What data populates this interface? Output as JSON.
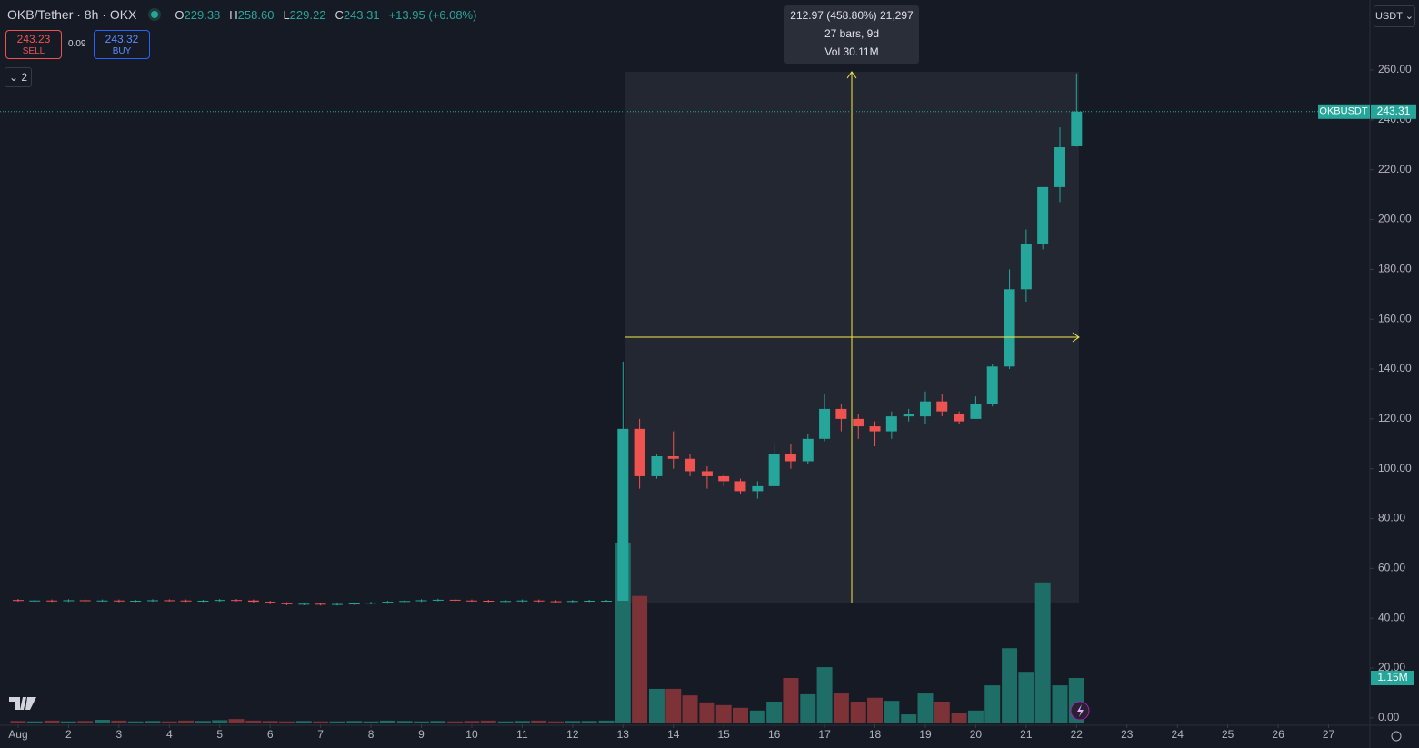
{
  "header": {
    "symbol": "OKB/Tether · 8h · OKX",
    "ohlc": [
      {
        "key": "O",
        "value": "229.38"
      },
      {
        "key": "H",
        "value": "258.60"
      },
      {
        "key": "L",
        "value": "229.22"
      },
      {
        "key": "C",
        "value": "243.31"
      }
    ],
    "change": "+13.95 (+6.08%)"
  },
  "trade": {
    "sell_price": "243.23",
    "sell": "SELL",
    "spread": "0.09",
    "buy_price": "243.32",
    "buy": "BUY"
  },
  "indicators_toggle": "2",
  "currency": "USDT",
  "measure": {
    "line1": "212.97 (458.80%) 21,297",
    "line2": "27 bars, 9d",
    "line3": "Vol 30.11M"
  },
  "chart_data": {
    "type": "candlestick",
    "up_color": "#26a69a",
    "down_color": "#ef5350",
    "volume_up_color": "#1e6d67",
    "volume_down_color": "#7d3237",
    "symbol_tag": "OKBUSDT",
    "x": [
      1,
      1.33,
      1.67,
      2,
      2.33,
      2.67,
      3,
      3.33,
      3.67,
      4,
      4.33,
      4.67,
      5,
      5.33,
      5.67,
      6,
      6.33,
      6.67,
      7,
      7.33,
      7.67,
      8,
      8.33,
      8.67,
      9,
      9.33,
      9.67,
      10,
      10.33,
      10.67,
      11,
      11.33,
      11.67,
      12,
      12.33,
      12.67,
      13,
      13.33,
      13.67,
      14,
      14.33,
      14.67,
      15,
      15.33,
      15.67,
      16,
      16.33,
      16.67,
      17,
      17.33,
      17.67,
      18,
      18.33,
      18.67,
      19,
      19.33,
      19.67,
      20,
      20.33,
      20.67,
      21,
      21.33,
      21.67,
      22
    ],
    "open": [
      47.3,
      47.0,
      47.1,
      46.9,
      47.2,
      47.0,
      47.1,
      46.8,
      47.0,
      47.2,
      47.1,
      46.9,
      47.0,
      47.3,
      47.1,
      46.6,
      46.0,
      45.6,
      45.8,
      45.5,
      45.7,
      45.9,
      46.2,
      46.6,
      46.9,
      47.2,
      47.4,
      47.1,
      47.0,
      46.8,
      46.9,
      47.1,
      46.8,
      46.7,
      46.9,
      47.0,
      47,
      116,
      97,
      105,
      104,
      99,
      97,
      95,
      91,
      93,
      106,
      103,
      112,
      124,
      120,
      117,
      115,
      121,
      121,
      127,
      122,
      120,
      126,
      141,
      172,
      190,
      213,
      229.38
    ],
    "high": [
      47.7,
      47.5,
      47.5,
      47.6,
      47.6,
      47.5,
      47.5,
      47.4,
      47.6,
      47.6,
      47.5,
      47.4,
      47.7,
      47.7,
      47.5,
      47.0,
      46.4,
      46.2,
      46.2,
      46.1,
      46.3,
      46.6,
      47.0,
      47.3,
      47.6,
      47.8,
      47.8,
      47.5,
      47.4,
      47.3,
      47.5,
      47.5,
      47.2,
      47.3,
      47.4,
      47.4,
      143,
      120,
      106,
      115,
      106,
      101,
      98,
      96,
      95,
      110,
      110,
      114,
      130,
      126,
      122,
      119,
      123,
      124,
      131,
      130,
      123,
      129,
      142,
      180,
      196,
      213,
      237,
      258.6
    ],
    "low": [
      46.6,
      46.6,
      46.5,
      46.5,
      46.6,
      46.6,
      46.4,
      46.4,
      46.6,
      46.7,
      46.5,
      46.5,
      46.6,
      46.7,
      46.2,
      45.6,
      45.2,
      45.2,
      45.1,
      45.1,
      45.3,
      45.5,
      45.8,
      46.2,
      46.5,
      46.8,
      46.7,
      46.6,
      46.4,
      46.4,
      46.5,
      46.4,
      46.3,
      46.3,
      46.5,
      46.6,
      47,
      92,
      96,
      100,
      97,
      92,
      93,
      90,
      88,
      93,
      100,
      102,
      111,
      115,
      112,
      109,
      112,
      119,
      118,
      121,
      118,
      120,
      125,
      140,
      167,
      188,
      207,
      229.22
    ],
    "close": [
      47.0,
      47.1,
      46.9,
      47.2,
      47.0,
      47.1,
      46.8,
      47.0,
      47.2,
      47.1,
      46.9,
      47.0,
      47.3,
      47.1,
      46.6,
      46.0,
      45.6,
      45.8,
      45.5,
      45.7,
      45.9,
      46.2,
      46.6,
      46.9,
      47.2,
      47.4,
      47.1,
      47.0,
      46.8,
      46.9,
      47.1,
      46.8,
      46.7,
      46.9,
      47.0,
      47.0,
      116,
      97,
      105,
      104,
      99,
      97,
      95,
      91,
      93,
      106,
      103,
      112,
      124,
      120,
      117,
      115,
      121,
      122,
      127,
      123,
      119,
      126,
      141,
      172,
      190,
      213,
      229,
      243.31
    ],
    "volume": [
      0.04,
      0.03,
      0.05,
      0.03,
      0.04,
      0.07,
      0.05,
      0.03,
      0.04,
      0.03,
      0.05,
      0.04,
      0.06,
      0.09,
      0.05,
      0.04,
      0.03,
      0.04,
      0.03,
      0.03,
      0.04,
      0.03,
      0.05,
      0.04,
      0.03,
      0.04,
      0.03,
      0.04,
      0.05,
      0.03,
      0.04,
      0.05,
      0.03,
      0.04,
      0.04,
      0.05,
      4.65,
      3.27,
      0.87,
      0.87,
      0.7,
      0.52,
      0.45,
      0.38,
      0.31,
      0.54,
      1.15,
      0.73,
      1.43,
      0.75,
      0.54,
      0.64,
      0.56,
      0.21,
      0.75,
      0.54,
      0.24,
      0.31,
      0.96,
      1.92,
      1.31,
      3.62,
      0.96,
      1.15
    ],
    "xlim": [
      0.64,
      27.82
    ],
    "xticks": [
      {
        "value": 1,
        "label": "Aug"
      },
      2,
      3,
      4,
      5,
      6,
      7,
      8,
      9,
      10,
      11,
      12,
      13,
      14,
      15,
      16,
      17,
      18,
      19,
      20,
      21,
      22,
      23,
      24,
      25,
      26,
      27
    ],
    "ylim": [
      -2.6,
      288.1
    ],
    "yticks": [
      {
        "value": 0,
        "label": "0.00"
      },
      {
        "value": 20,
        "label": "20.00"
      },
      {
        "value": 40,
        "label": "40.00"
      },
      {
        "value": 60,
        "label": "60.00"
      },
      {
        "value": 80,
        "label": "80.00"
      },
      {
        "value": 100,
        "label": "100.00"
      },
      {
        "value": 120,
        "label": "120.00"
      },
      {
        "value": 140,
        "label": "140.00"
      },
      {
        "value": 160,
        "label": "160.00"
      },
      {
        "value": 180,
        "label": "180.00"
      },
      {
        "value": 200,
        "label": "200.00"
      },
      {
        "value": 220,
        "label": "220.00"
      },
      {
        "value": 240,
        "label": "240.00"
      },
      {
        "value": 260,
        "label": "260.00"
      }
    ],
    "y2lim": [
      0,
      5
    ],
    "y2ticks": [
      {
        "value": 1.15,
        "label": "1.15M"
      }
    ]
  }
}
